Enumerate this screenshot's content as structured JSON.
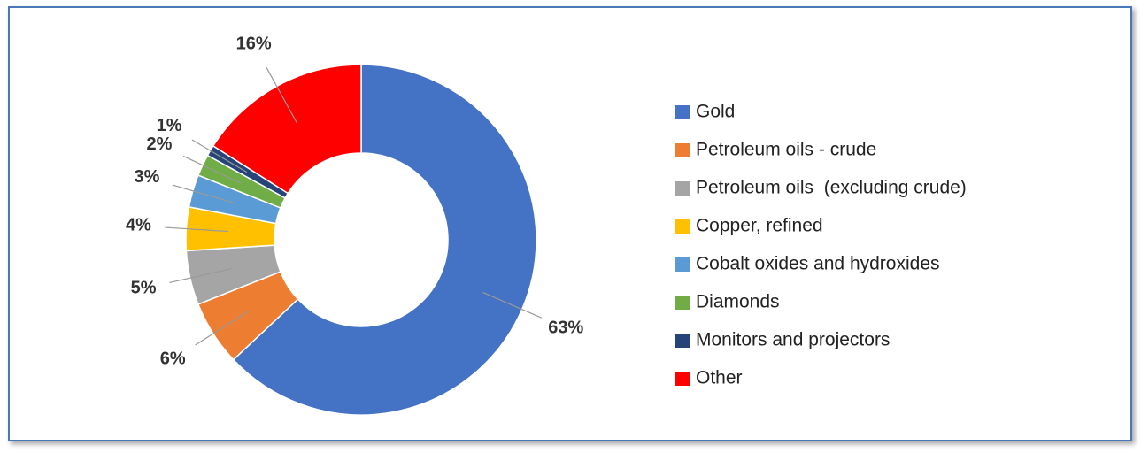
{
  "chart_data": {
    "type": "pie",
    "donut": true,
    "categories": [
      "Gold",
      "Petroleum oils - crude",
      "Petroleum oils  (excluding crude)",
      "Copper, refined",
      "Cobalt oxides and hydroxides",
      "Diamonds",
      "Monitors and projectors",
      "Other"
    ],
    "values": [
      63,
      6,
      5,
      4,
      3,
      2,
      1,
      16
    ],
    "value_labels": [
      "63%",
      "6%",
      "5%",
      "4%",
      "3%",
      "2%",
      "1%",
      "16%"
    ],
    "colors": [
      "#4472c4",
      "#ed7d31",
      "#a5a5a5",
      "#ffc000",
      "#5b9bd5",
      "#70ad47",
      "#264478",
      "#ff0000"
    ],
    "legend": "right"
  }
}
